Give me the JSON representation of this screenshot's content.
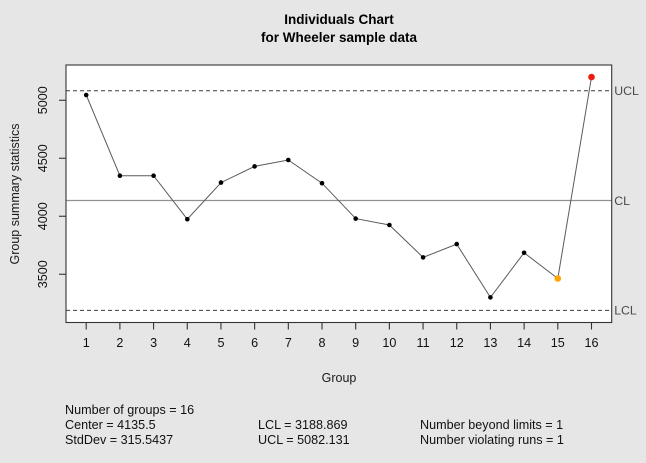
{
  "header": {
    "title": "Individuals Chart",
    "subtitle": "for Wheeler sample data"
  },
  "chart_data": {
    "type": "line",
    "title": "Individuals Chart for Wheeler sample data",
    "xlabel": "Group",
    "ylabel": "Group summary statistics",
    "categories": [
      1,
      2,
      3,
      4,
      5,
      6,
      7,
      8,
      9,
      10,
      11,
      12,
      13,
      14,
      15,
      16
    ],
    "values": [
      5045,
      4350,
      4350,
      3975,
      4290,
      4430,
      4485,
      4285,
      3980,
      3925,
      3645,
      3760,
      3300,
      3685,
      3463,
      5200
    ],
    "point_status": [
      "normal",
      "normal",
      "normal",
      "normal",
      "normal",
      "normal",
      "normal",
      "normal",
      "normal",
      "normal",
      "normal",
      "normal",
      "normal",
      "normal",
      "violating_runs",
      "beyond_limits"
    ],
    "y_ticks": [
      3500,
      4000,
      4500,
      5000
    ],
    "ylim": [
      3084,
      5304
    ],
    "xlim": [
      0.4,
      16.6
    ],
    "grid": false,
    "legend": "none",
    "limits": {
      "ucl": 5082.131,
      "cl": 4135.5,
      "lcl": 3188.869
    },
    "limit_labels": {
      "ucl": "UCL",
      "cl": "CL",
      "lcl": "LCL"
    },
    "colors": {
      "normal_point": "#000000",
      "beyond_limits": "#ee1c0e",
      "violating_runs": "#ffa500",
      "series_line": "#5a5a5a",
      "center_line": "#919191",
      "limit_line": "#3c3c3c",
      "axis": "#333333",
      "plot_bg": "#ffffff",
      "figure_bg": "#e6e6e6",
      "limit_label_text": "#4a4a4a",
      "tick_label_text": "#111111"
    }
  },
  "stats": {
    "col1": [
      "Number of groups = 16",
      "Center = 4135.5",
      "StdDev = 315.5437"
    ],
    "col2": [
      "LCL = 3188.869",
      "UCL = 5082.131"
    ],
    "col3": [
      "Number beyond limits = 1",
      "Number violating runs = 1"
    ]
  }
}
